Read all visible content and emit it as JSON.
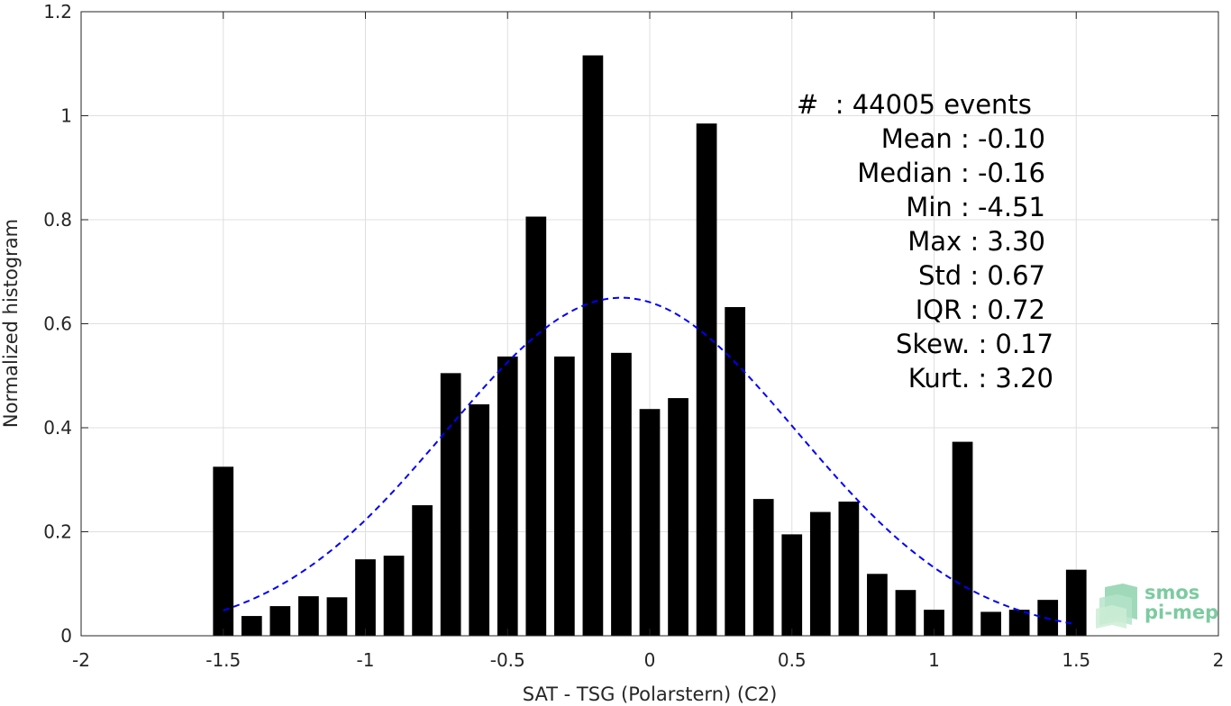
{
  "chart_data": {
    "type": "bar",
    "xlabel": "SAT - TSG (Polarstern) (C2)",
    "ylabel": "Normalized histogram",
    "xlim": [
      -2,
      2
    ],
    "ylim": [
      0,
      1.2
    ],
    "xticks": [
      -2,
      -1.5,
      -1,
      -0.5,
      0,
      0.5,
      1,
      1.5,
      2
    ],
    "xtick_labels": [
      "-2",
      "-1.5",
      "-1",
      "-0.5",
      "0",
      "0.5",
      "1",
      "1.5",
      "2"
    ],
    "yticks": [
      0,
      0.2,
      0.4,
      0.6,
      0.8,
      1,
      1.2
    ],
    "ytick_labels": [
      "0",
      "0.2",
      "0.4",
      "0.6",
      "0.8",
      "1",
      "1.2"
    ],
    "grid": true,
    "bar_color": "#000000",
    "x": [
      -1.5,
      -1.4,
      -1.3,
      -1.2,
      -1.1,
      -1.0,
      -0.9,
      -0.8,
      -0.7,
      -0.6,
      -0.5,
      -0.4,
      -0.3,
      -0.2,
      -0.1,
      0.0,
      0.1,
      0.2,
      0.3,
      0.4,
      0.5,
      0.6,
      0.7,
      0.8,
      0.9,
      1.0,
      1.1,
      1.2,
      1.3,
      1.4,
      1.5
    ],
    "values": [
      0.325,
      0.038,
      0.057,
      0.076,
      0.074,
      0.147,
      0.154,
      0.251,
      0.505,
      0.445,
      0.537,
      0.806,
      0.537,
      1.116,
      0.544,
      0.436,
      0.457,
      0.985,
      0.632,
      0.263,
      0.195,
      0.238,
      0.258,
      0.119,
      0.088,
      0.05,
      0.373,
      0.046,
      0.05,
      0.069,
      0.127
    ],
    "fit": {
      "type": "gaussian",
      "mean": -0.1,
      "std": 0.615,
      "peak": 0.65,
      "x_range": [
        -1.5,
        1.5
      ],
      "color": "#0000ff",
      "style": "dashed"
    },
    "annotations": [
      "#  : 44005 events",
      "Mean : -0.10",
      "Median : -0.16",
      "Min : -4.51",
      "Max : 3.30",
      "Std : 0.67",
      "IQR : 0.72",
      "Skew. : 0.17",
      "Kurt. : 3.20"
    ]
  },
  "logo": {
    "line1": "smos",
    "line2": "pi-mep",
    "color": "#7ccba0"
  }
}
